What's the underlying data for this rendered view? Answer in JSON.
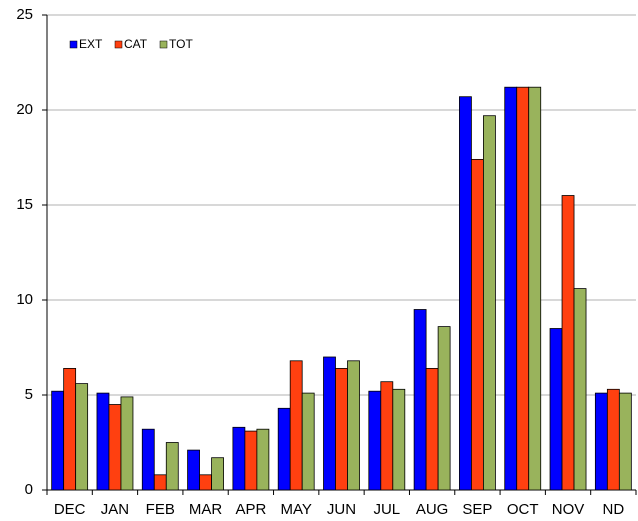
{
  "chart_data": {
    "type": "bar",
    "categories": [
      "DEC",
      "JAN",
      "FEB",
      "MAR",
      "APR",
      "MAY",
      "JUN",
      "JUL",
      "AUG",
      "SEP",
      "OCT",
      "NOV",
      "ND"
    ],
    "series": [
      {
        "name": "EXT",
        "color": "#0000ff",
        "values": [
          5.2,
          5.1,
          3.2,
          2.1,
          3.3,
          4.3,
          7.0,
          5.2,
          9.5,
          20.7,
          21.2,
          8.5,
          5.1
        ]
      },
      {
        "name": "CAT",
        "color": "#ff4010",
        "values": [
          6.4,
          4.5,
          0.8,
          0.8,
          3.1,
          6.8,
          6.4,
          5.7,
          6.4,
          17.4,
          21.2,
          15.5,
          5.3
        ]
      },
      {
        "name": "TOT",
        "color": "#99b35c",
        "values": [
          5.6,
          4.9,
          2.5,
          1.7,
          3.2,
          5.1,
          6.8,
          5.3,
          8.6,
          19.7,
          21.2,
          10.6,
          5.1
        ]
      }
    ],
    "ylim": [
      0,
      25
    ],
    "yticks": [
      0,
      5,
      10,
      15,
      20,
      25
    ],
    "grid": true,
    "legend": "top-left"
  }
}
